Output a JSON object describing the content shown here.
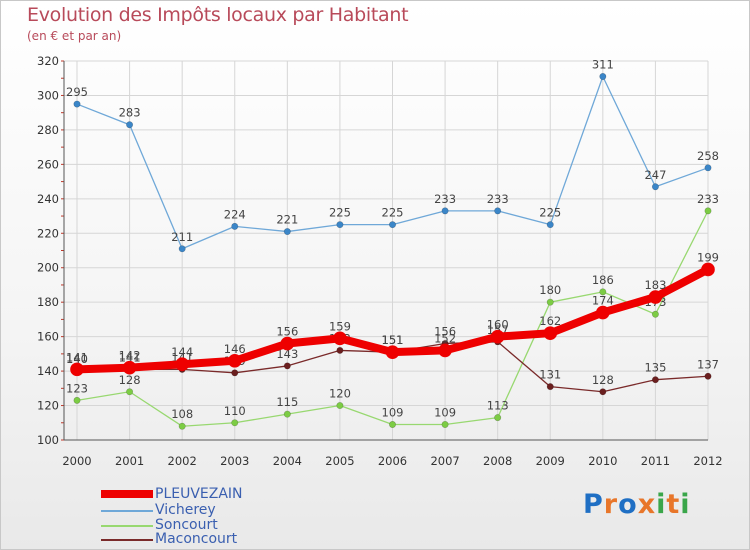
{
  "title": "Evolution des Impôts locaux par Habitant",
  "subtitle": "(en € et par an)",
  "logo": {
    "text": "Proxiti",
    "colors": [
      "#1f6fc4",
      "#e8762a",
      "#1f6fc4",
      "#e8762a",
      "#3aa64a",
      "#e8762a",
      "#3aa64a"
    ]
  },
  "chart_data": {
    "type": "line",
    "x": [
      "2000",
      "2001",
      "2002",
      "2003",
      "2004",
      "2005",
      "2006",
      "2007",
      "2008",
      "2009",
      "2010",
      "2011",
      "2012"
    ],
    "ylim": [
      100,
      320
    ],
    "yticks": [
      100,
      120,
      140,
      160,
      180,
      200,
      220,
      240,
      260,
      280,
      300,
      320
    ],
    "grid": true,
    "legend_placement": "bottom-left",
    "series": [
      {
        "name": "Vicherey",
        "color": "#6fa8d8",
        "marker": "#3b86c8",
        "values": [
          295,
          283,
          211,
          224,
          221,
          225,
          225,
          233,
          233,
          225,
          311,
          247,
          258
        ],
        "labels": [
          "295",
          "283",
          "211",
          "224",
          "221",
          "225",
          "225",
          "233",
          "233",
          "225",
          "311",
          "247",
          "258"
        ]
      },
      {
        "name": "Soncourt",
        "color": "#98d870",
        "marker": "#7ccc44",
        "values": [
          123,
          128,
          108,
          110,
          115,
          120,
          109,
          109,
          113,
          180,
          186,
          173,
          233
        ],
        "labels": [
          "123",
          "128",
          "108",
          "110",
          "115",
          "120",
          "109",
          "109",
          "113",
          "180",
          "186",
          "173",
          "233"
        ]
      },
      {
        "name": "Maconcourt",
        "color": "#7a2a2a",
        "marker": "#6b1f1f",
        "values": [
          140,
          141,
          141,
          139,
          143,
          152,
          151,
          156,
          157,
          131,
          128,
          135,
          137
        ],
        "labels": [
          "140",
          "141",
          "141",
          "139",
          "143",
          "152",
          "151",
          "156",
          "157",
          "131",
          "128",
          "135",
          "137"
        ]
      },
      {
        "name": "PLEUVEZAIN",
        "color": "#ee0000",
        "marker": "#ee0000",
        "values": [
          141,
          142,
          144,
          146,
          156,
          159,
          151,
          152,
          160,
          162,
          174,
          183,
          199
        ],
        "labels": [
          "141",
          "142",
          "144",
          "146",
          "156",
          "159",
          "151",
          "152",
          "160",
          "162",
          "174",
          "183",
          "199"
        ]
      }
    ]
  }
}
